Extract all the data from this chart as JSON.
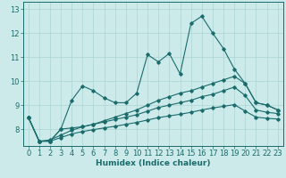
{
  "title": "",
  "xlabel": "Humidex (Indice chaleur)",
  "ylabel": "",
  "background_color": "#cceaea",
  "grid_color": "#aad4d4",
  "line_color": "#1a6b6b",
  "x_values": [
    0,
    1,
    2,
    3,
    4,
    5,
    6,
    7,
    8,
    9,
    10,
    11,
    12,
    13,
    14,
    15,
    16,
    17,
    18,
    19,
    20,
    21,
    22,
    23
  ],
  "series": [
    [
      8.5,
      7.5,
      7.5,
      8.0,
      9.2,
      9.8,
      9.6,
      9.3,
      9.1,
      9.1,
      9.5,
      11.1,
      10.8,
      11.15,
      10.3,
      12.4,
      12.7,
      12.0,
      11.35,
      10.5,
      9.9,
      9.1,
      9.0,
      8.8
    ],
    [
      8.5,
      7.5,
      7.5,
      8.0,
      8.05,
      8.1,
      8.2,
      8.35,
      8.5,
      8.65,
      8.8,
      9.0,
      9.2,
      9.35,
      9.5,
      9.6,
      9.75,
      9.9,
      10.05,
      10.2,
      9.9,
      9.1,
      9.0,
      8.8
    ],
    [
      8.5,
      7.5,
      7.55,
      7.75,
      7.95,
      8.1,
      8.2,
      8.3,
      8.4,
      8.5,
      8.6,
      8.75,
      8.9,
      9.0,
      9.1,
      9.2,
      9.35,
      9.45,
      9.6,
      9.75,
      9.4,
      8.8,
      8.7,
      8.65
    ],
    [
      8.5,
      7.5,
      7.5,
      7.65,
      7.8,
      7.9,
      7.98,
      8.05,
      8.12,
      8.2,
      8.28,
      8.38,
      8.48,
      8.55,
      8.62,
      8.7,
      8.8,
      8.88,
      8.95,
      9.02,
      8.75,
      8.5,
      8.45,
      8.42
    ]
  ],
  "ylim": [
    7.3,
    13.3
  ],
  "xlim": [
    -0.5,
    23.5
  ],
  "yticks": [
    8,
    9,
    10,
    11,
    12,
    13
  ],
  "xticks": [
    0,
    1,
    2,
    3,
    4,
    5,
    6,
    7,
    8,
    9,
    10,
    11,
    12,
    13,
    14,
    15,
    16,
    17,
    18,
    19,
    20,
    21,
    22,
    23
  ],
  "marker": "D",
  "marker_size": 1.8,
  "line_width": 0.8,
  "xlabel_fontsize": 6.5,
  "tick_fontsize": 6
}
